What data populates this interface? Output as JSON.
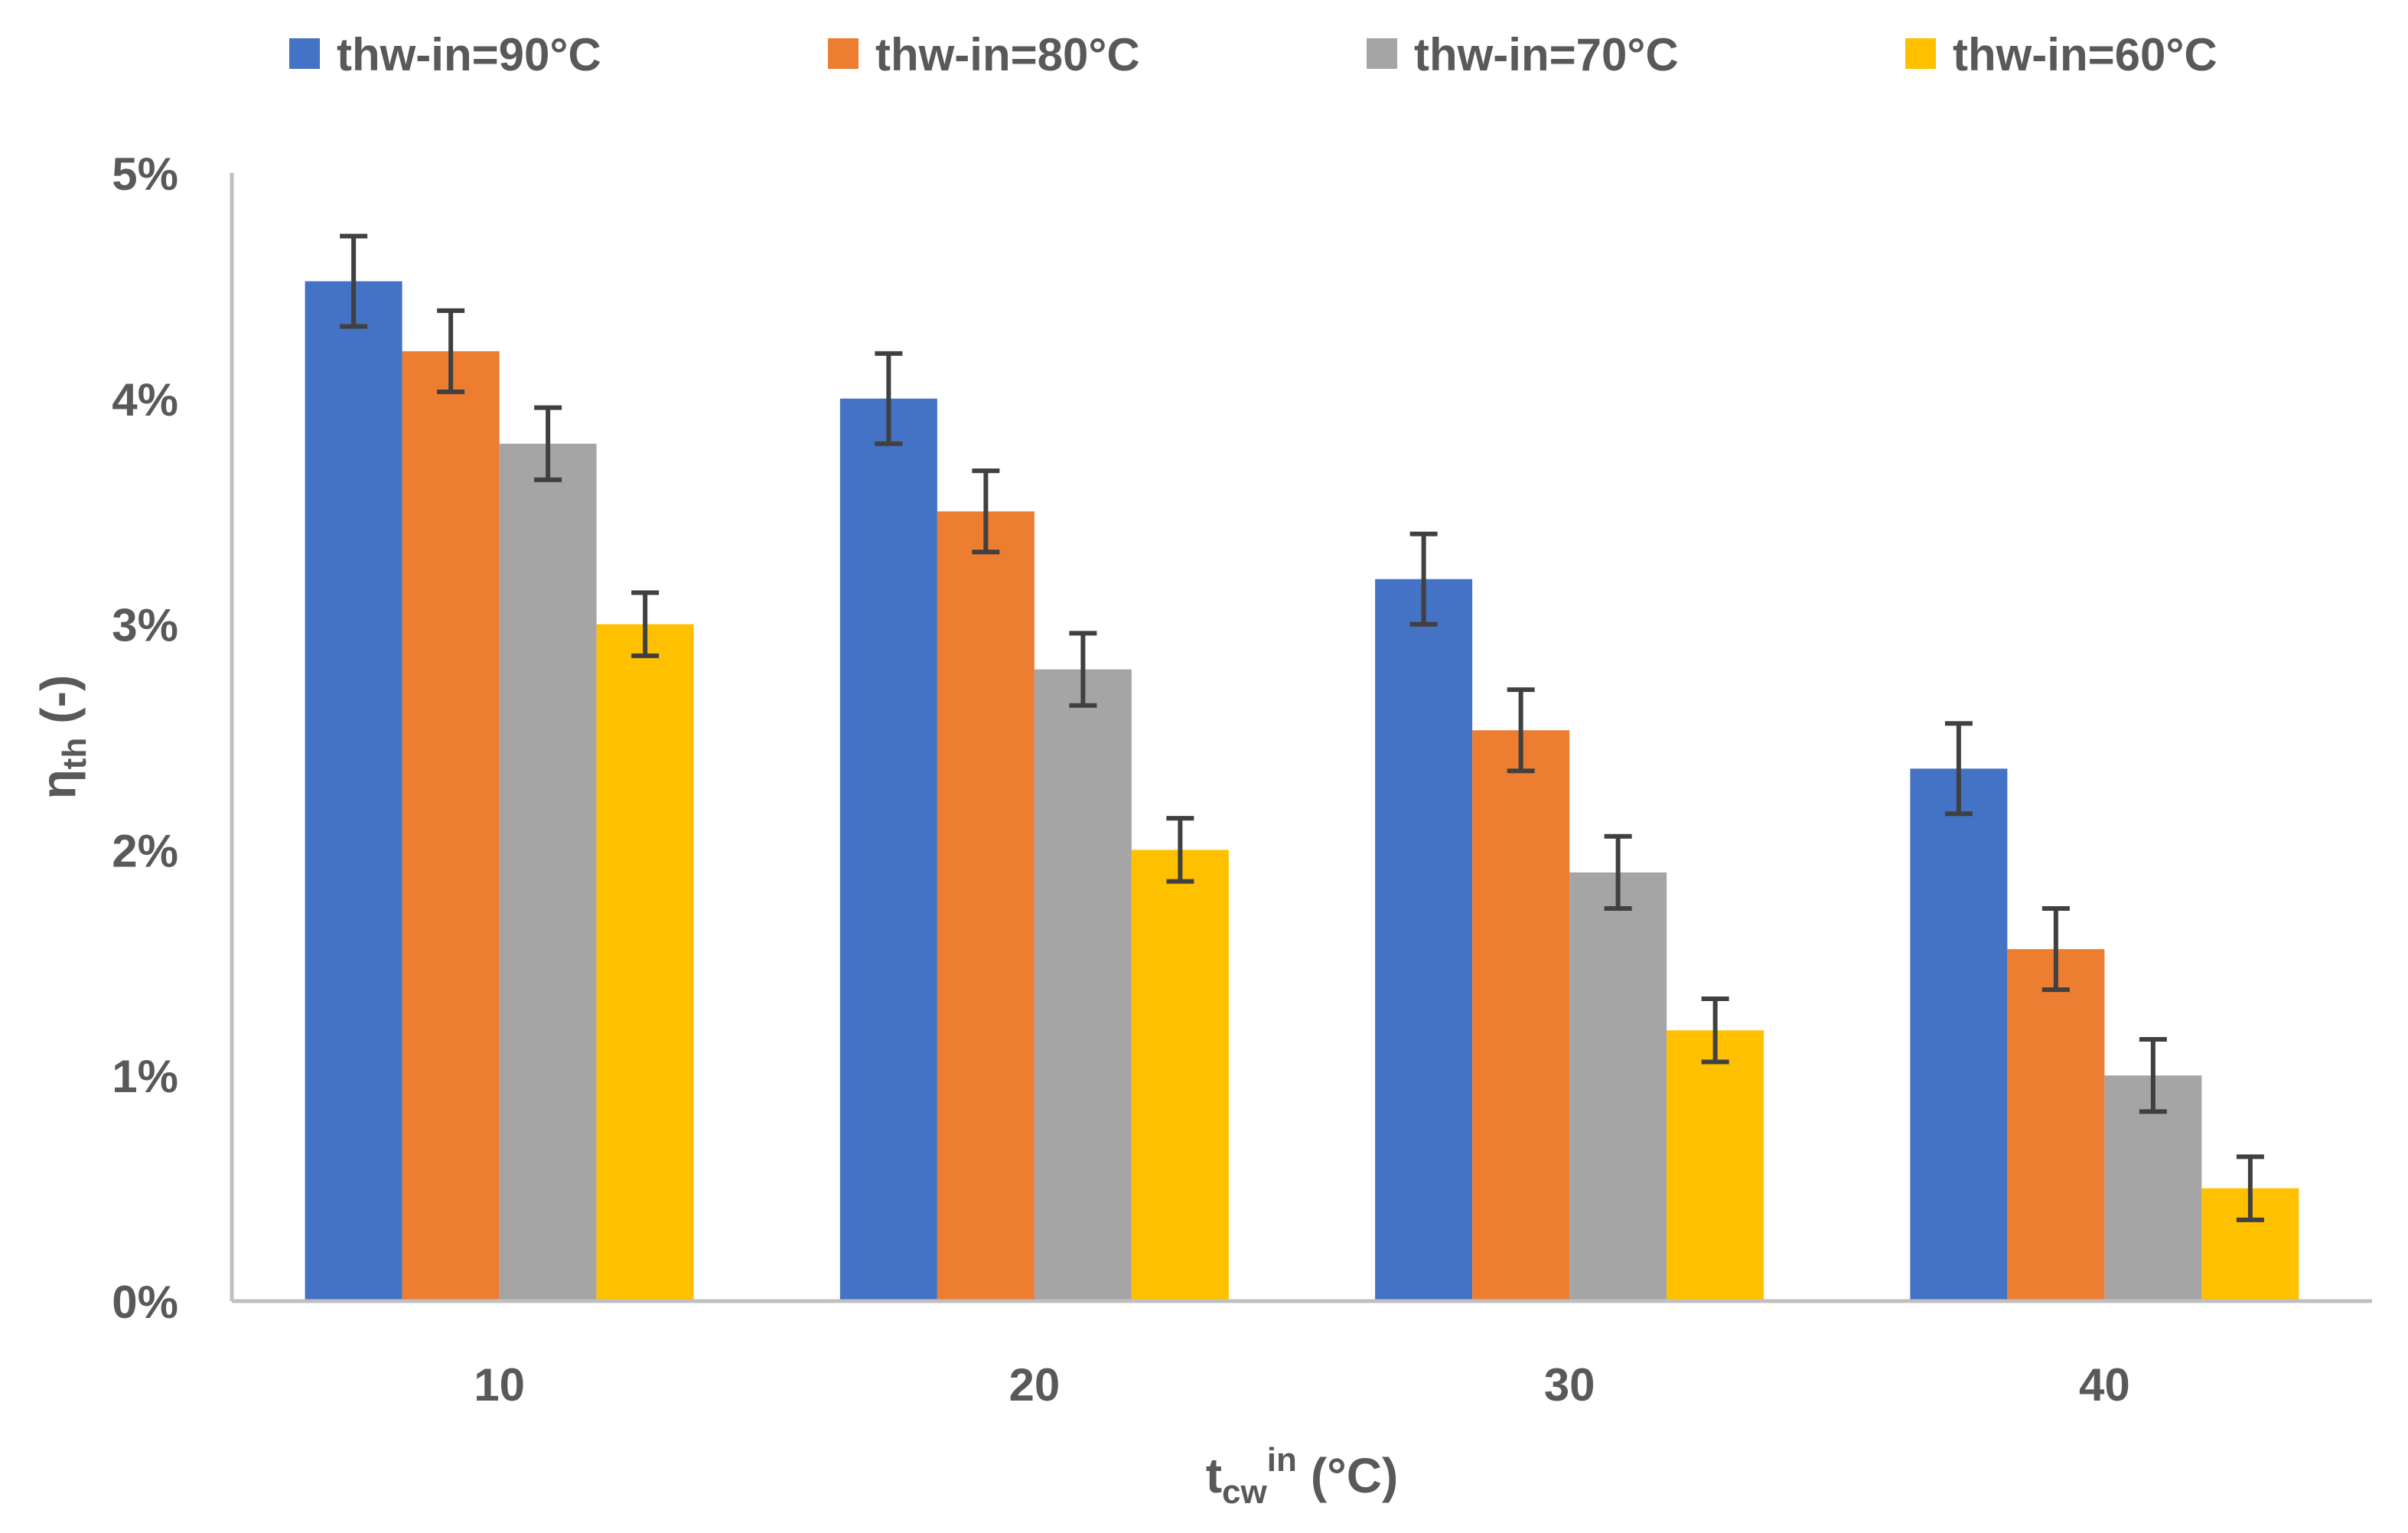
{
  "chart_data": {
    "type": "bar",
    "title": "",
    "xlabel_main": "t",
    "xlabel_sub": "cw",
    "xlabel_sup": "in",
    "xlabel_unit": "(°C)",
    "ylabel_main": "η",
    "ylabel_sub": "th",
    "ylabel_unit": "(-)",
    "categories": [
      "10",
      "20",
      "30",
      "40"
    ],
    "ylim": [
      0,
      0.05
    ],
    "yticks": [
      0,
      0.01,
      0.02,
      0.03,
      0.04,
      0.05
    ],
    "ytick_labels": [
      "0%",
      "1%",
      "2%",
      "3%",
      "4%",
      "5%"
    ],
    "legend_position": "top",
    "grid": false,
    "error_bars": true,
    "series": [
      {
        "name": "thw-in=90°C",
        "color": "#4472C4",
        "values": [
          0.0452,
          0.04,
          0.032,
          0.0236
        ],
        "errors": [
          0.002,
          0.002,
          0.002,
          0.002
        ]
      },
      {
        "name": "thw-in=80°C",
        "color": "#ED7D31",
        "values": [
          0.0421,
          0.035,
          0.0253,
          0.0156
        ],
        "errors": [
          0.0018,
          0.0018,
          0.0018,
          0.0018
        ]
      },
      {
        "name": "thw-in=70°C",
        "color": "#A5A5A5",
        "values": [
          0.038,
          0.028,
          0.019,
          0.01
        ],
        "errors": [
          0.0016,
          0.0016,
          0.0016,
          0.0016
        ]
      },
      {
        "name": "thw-in=60°C",
        "color": "#FFC000",
        "values": [
          0.03,
          0.02,
          0.012,
          0.005
        ],
        "errors": [
          0.0014,
          0.0014,
          0.0014,
          0.0014
        ]
      }
    ]
  }
}
